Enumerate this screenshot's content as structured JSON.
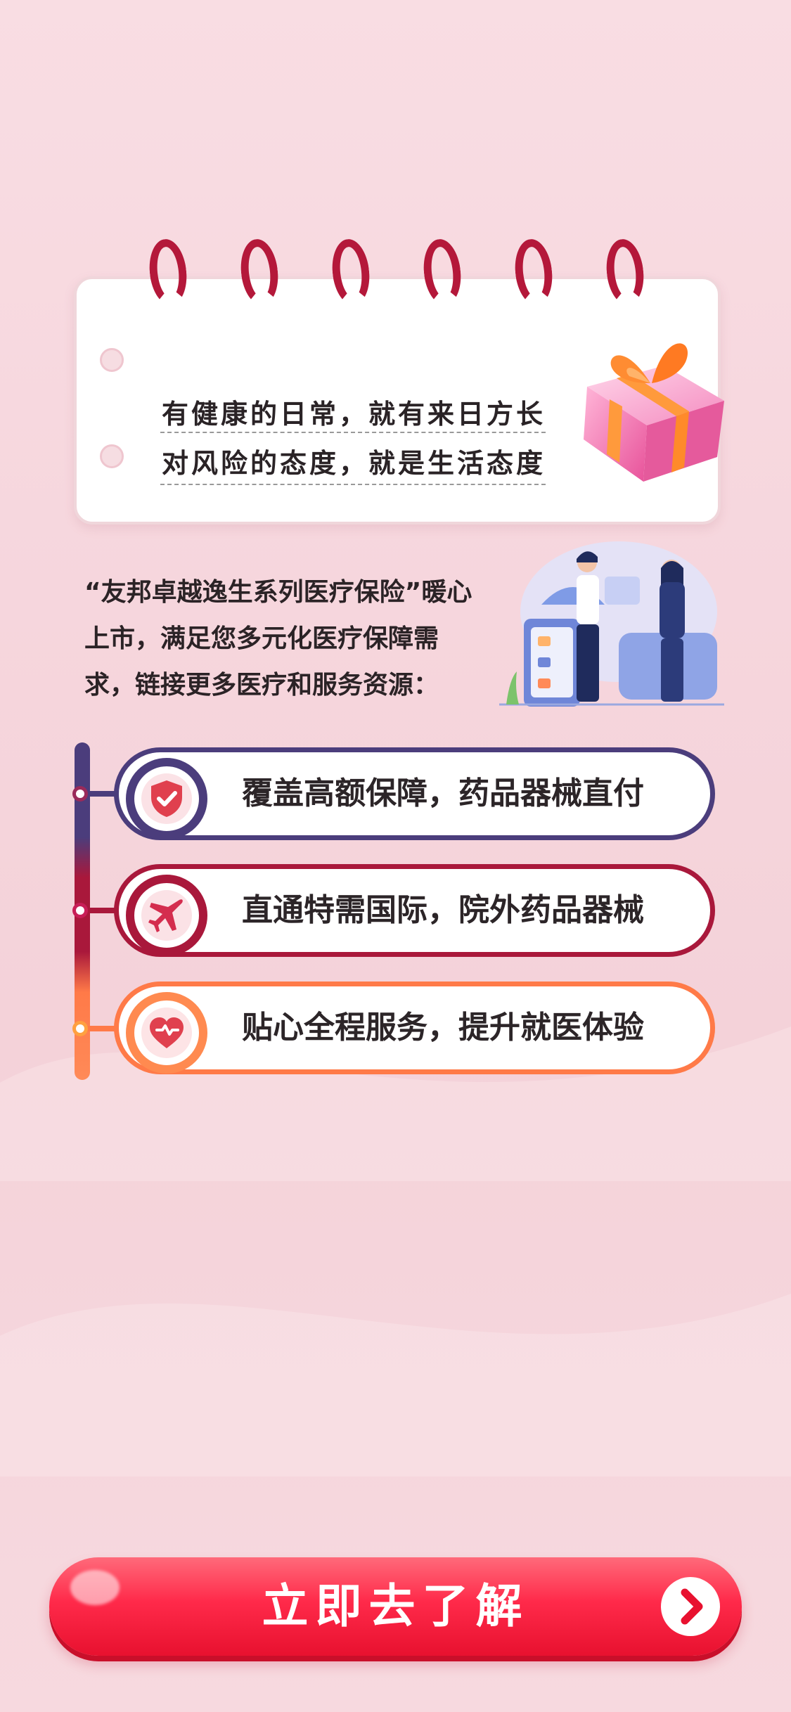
{
  "card": {
    "line1": "有健康的日常，就有来日方长",
    "line2": "对风险的态度，就是生活态度"
  },
  "intro": {
    "text": "“友邦卓越逸生系列医疗保险”暖心上市，满足您多元化医疗保障需求，链接更多医疗和服务资源："
  },
  "features": [
    {
      "label": "覆盖高额保障，药品器械直付",
      "icon": "shield-check-icon",
      "color": "#4b3d7c"
    },
    {
      "label": "直通特需国际，院外药品器械",
      "icon": "airplane-icon",
      "color": "#a9183b"
    },
    {
      "label": "贴心全程服务，提升就医体验",
      "icon": "heart-icon",
      "color": "#ff7a48"
    }
  ],
  "cta": {
    "label": "立即去了解",
    "icon": "chevron-right-icon"
  },
  "colors": {
    "accent": "#e8112f",
    "ring": "#b4183a"
  }
}
